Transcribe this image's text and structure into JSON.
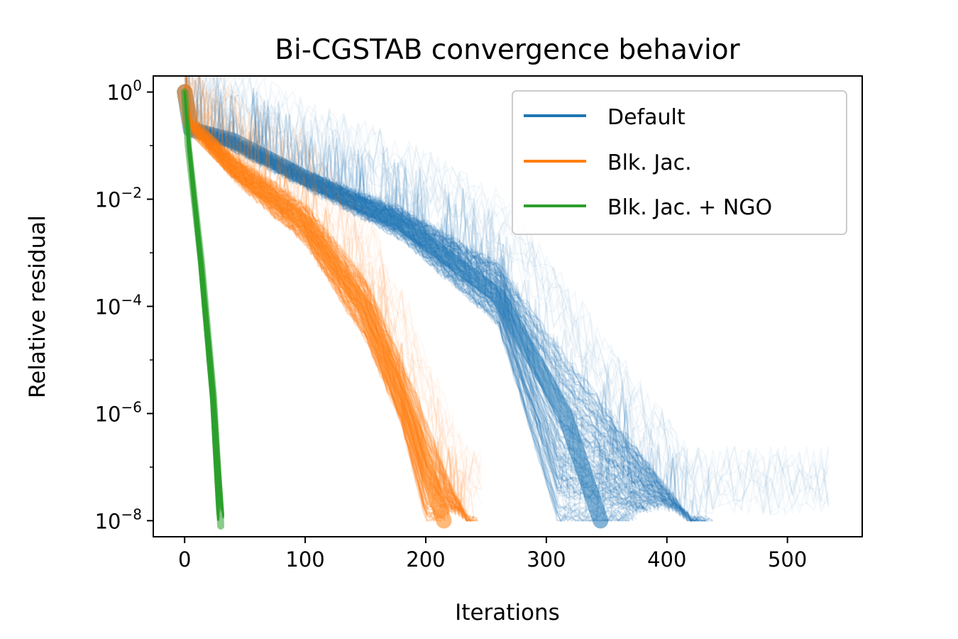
{
  "chart_data": {
    "type": "line",
    "title": "Bi-CGSTAB convergence behavior",
    "xlabel": "Iterations",
    "ylabel": "Relative residual",
    "xlim": [
      -26,
      562
    ],
    "ylim_log10": [
      -8.3,
      0.3
    ],
    "y_scale": "log",
    "x_ticks": [
      0,
      100,
      200,
      300,
      400,
      500
    ],
    "x_tick_labels": [
      "0",
      "100",
      "200",
      "300",
      "400",
      "500"
    ],
    "y_ticks_log10": [
      0,
      -2,
      -4,
      -6,
      -8
    ],
    "y_tick_labels": [
      {
        "base": "10",
        "exp": "0"
      },
      {
        "base": "10",
        "exp": "−2"
      },
      {
        "base": "10",
        "exp": "−4"
      },
      {
        "base": "10",
        "exp": "−6"
      },
      {
        "base": "10",
        "exp": "−8"
      }
    ],
    "legend_position": "top-right",
    "grid": false,
    "series": [
      {
        "name": "Default",
        "color": "#1f77b4",
        "band_lower": [
          [
            0,
            0
          ],
          [
            5,
            -0.75
          ],
          [
            40,
            -1.05
          ],
          [
            100,
            -1.75
          ],
          [
            180,
            -2.7
          ],
          [
            260,
            -4.3
          ],
          [
            310,
            -8.0
          ],
          [
            370,
            -8.0
          ]
        ],
        "band_upper": [
          [
            0,
            0
          ],
          [
            5,
            -0.6
          ],
          [
            40,
            -0.85
          ],
          [
            100,
            -1.5
          ],
          [
            180,
            -2.2
          ],
          [
            260,
            -3.2
          ],
          [
            320,
            -5.0
          ],
          [
            380,
            -6.8
          ],
          [
            420,
            -8.0
          ],
          [
            440,
            -8.0
          ]
        ],
        "median_path": [
          [
            0,
            0
          ],
          [
            5,
            -0.7
          ],
          [
            40,
            -0.9
          ],
          [
            100,
            -1.6
          ],
          [
            180,
            -2.45
          ],
          [
            260,
            -3.8
          ],
          [
            315,
            -6.0
          ],
          [
            345,
            -8.0
          ]
        ],
        "max_iterations_visible": 535
      },
      {
        "name": "Blk. Jac.",
        "color": "#ff7f0e",
        "band_lower": [
          [
            0,
            0
          ],
          [
            5,
            -0.65
          ],
          [
            40,
            -1.6
          ],
          [
            100,
            -2.8
          ],
          [
            150,
            -4.6
          ],
          [
            180,
            -6.2
          ],
          [
            200,
            -8.0
          ],
          [
            215,
            -8.0
          ]
        ],
        "band_upper": [
          [
            0,
            0
          ],
          [
            5,
            -0.55
          ],
          [
            40,
            -1.2
          ],
          [
            100,
            -2.1
          ],
          [
            150,
            -3.5
          ],
          [
            190,
            -5.5
          ],
          [
            220,
            -7.3
          ],
          [
            235,
            -8.0
          ],
          [
            245,
            -8.0
          ]
        ],
        "median_path": [
          [
            0,
            0
          ],
          [
            5,
            -0.6
          ],
          [
            40,
            -1.4
          ],
          [
            100,
            -2.45
          ],
          [
            150,
            -4.05
          ],
          [
            190,
            -6.3
          ],
          [
            215,
            -8.0
          ]
        ],
        "max_iterations_visible": 250
      },
      {
        "name": "Blk. Jac. + NGO",
        "color": "#2ca02c",
        "band_lower": [
          [
            0,
            0
          ],
          [
            3,
            -1.1
          ],
          [
            12,
            -3.2
          ],
          [
            22,
            -5.8
          ],
          [
            28,
            -8.25
          ]
        ],
        "band_upper": [
          [
            0,
            0
          ],
          [
            4,
            -0.9
          ],
          [
            15,
            -3.2
          ],
          [
            25,
            -5.6
          ],
          [
            32,
            -7.9
          ],
          [
            33,
            -8.0
          ]
        ],
        "median_path": [
          [
            0,
            0
          ],
          [
            3,
            -1.0
          ],
          [
            14,
            -3.2
          ],
          [
            24,
            -5.7
          ],
          [
            30,
            -8.1
          ]
        ],
        "max_iterations_visible": 33
      }
    ]
  }
}
